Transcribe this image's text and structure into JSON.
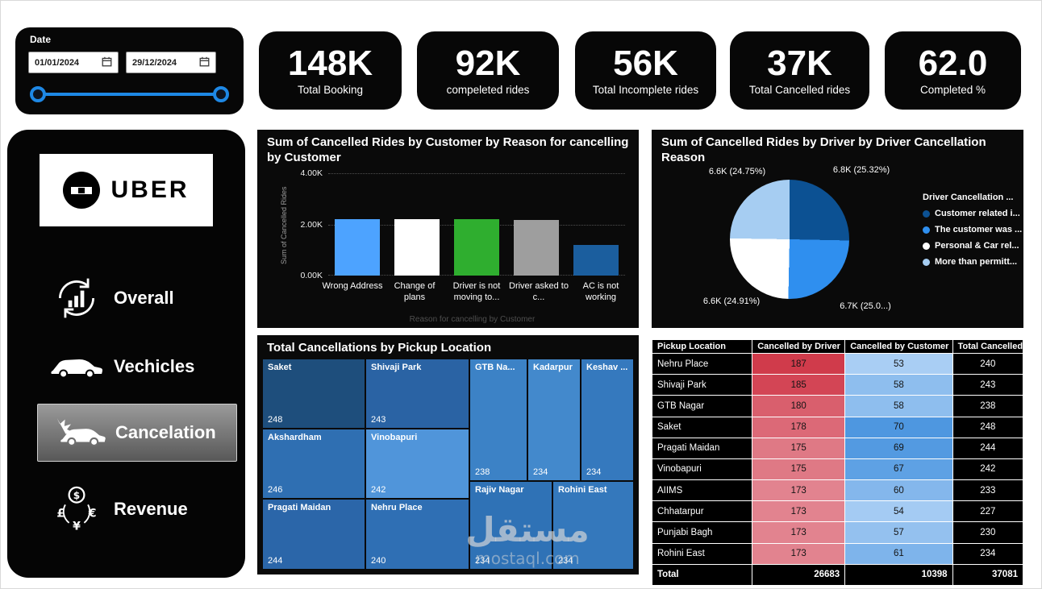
{
  "date_filter": {
    "label": "Date",
    "start_date": "01/01/2024",
    "end_date": "29/12/2024"
  },
  "kpis": [
    {
      "value": "148K",
      "label": "Total Booking"
    },
    {
      "value": "92K",
      "label": "compeleted rides"
    },
    {
      "value": "56K",
      "label": "Total Incomplete rides"
    },
    {
      "value": "37K",
      "label": "Total Cancelled rides"
    },
    {
      "value": "62.0",
      "label": "Completed %"
    }
  ],
  "sidebar": {
    "logo_text": "UBER",
    "items": [
      {
        "label": "Overall",
        "active": false
      },
      {
        "label": "Vechicles",
        "active": false
      },
      {
        "label": "Cancelation",
        "active": true
      },
      {
        "label": "Revenue",
        "active": false
      }
    ]
  },
  "watermark": {
    "arabic": "مستقل",
    "latin": "mostaql.com"
  },
  "chart_data": [
    {
      "type": "bar",
      "title": "Sum of Cancelled Rides by Customer by Reason for cancelling by Customer",
      "ylabel": "Sum of Cancelled Rides",
      "xlabel": "Reason for cancelling by Customer",
      "categories": [
        "Wrong Address",
        "Change of plans",
        "Driver is not moving to...",
        "Driver asked to c...",
        "AC is not working"
      ],
      "values": [
        2210,
        2205,
        2195,
        2185,
        1190
      ],
      "colors": [
        "#4DA3FF",
        "#FFFFFF",
        "#2FAE2F",
        "#9E9E9E",
        "#1B5E9E"
      ],
      "ylim": [
        0,
        4000
      ],
      "yticks": [
        "4.00K",
        "2.00K",
        "0.00K"
      ],
      "grid": "dotted horizontal"
    },
    {
      "type": "pie",
      "title": "Sum of Cancelled Rides by Driver by Driver Cancellation Reason",
      "legend_title": "Driver Cancellation ...",
      "legend_position": "right",
      "slices": [
        {
          "legend": "Customer related i...",
          "label": "6.8K (25.32%)",
          "value": 25.32,
          "color": "#0C5193"
        },
        {
          "legend": "The customer was ...",
          "label": "6.7K (25.0...)",
          "value": 25.02,
          "color": "#2F8FEF"
        },
        {
          "legend": "Personal & Car rel...",
          "label": "6.6K (24.91%)",
          "value": 24.91,
          "color": "#FFFFFF"
        },
        {
          "legend": "More than permitt...",
          "label": "6.6K (24.75%)",
          "value": 24.75,
          "color": "#A6CDF2"
        }
      ]
    },
    {
      "type": "treemap",
      "title": "Total Cancellations by Pickup Location",
      "tiles": [
        {
          "name": "Saket",
          "value": 248,
          "color": "#1E4E7C"
        },
        {
          "name": "Shivaji Park",
          "value": 243,
          "color": "#2A63A4"
        },
        {
          "name": "GTB Na...",
          "value": 238,
          "color": "#3C82C6"
        },
        {
          "name": "Kadarpur",
          "value": 234,
          "color": "#4389CC"
        },
        {
          "name": "Keshav ...",
          "value": 234,
          "color": "#3579BE"
        },
        {
          "name": "Akshardham",
          "value": 246,
          "color": "#2F6FB2"
        },
        {
          "name": "Vinobapuri",
          "value": 242,
          "color": "#5095DA"
        },
        {
          "name": "Rajiv Nagar",
          "value": 234,
          "color": "#2F72B6"
        },
        {
          "name": "Rohini East",
          "value": 234,
          "color": "#3478BC"
        },
        {
          "name": "Pragati Maidan",
          "value": 244,
          "color": "#2B66A9"
        },
        {
          "name": "Nehru Place",
          "value": 240,
          "color": "#2F6FB4"
        }
      ]
    },
    {
      "type": "table",
      "headers": [
        "Pickup Location",
        "Cancelled by Driver",
        "Cancelled by Customer",
        "Total Cancelled"
      ],
      "rows": [
        {
          "location": "Nehru Place",
          "driver": 187,
          "customer": 53,
          "total": 240
        },
        {
          "location": "Shivaji Park",
          "driver": 185,
          "customer": 58,
          "total": 243
        },
        {
          "location": "GTB Nagar",
          "driver": 180,
          "customer": 58,
          "total": 238
        },
        {
          "location": "Saket",
          "driver": 178,
          "customer": 70,
          "total": 248
        },
        {
          "location": "Pragati Maidan",
          "driver": 175,
          "customer": 69,
          "total": 244
        },
        {
          "location": "Vinobapuri",
          "driver": 175,
          "customer": 67,
          "total": 242
        },
        {
          "location": "AIIMS",
          "driver": 173,
          "customer": 60,
          "total": 233
        },
        {
          "location": "Chhatarpur",
          "driver": 173,
          "customer": 54,
          "total": 227
        },
        {
          "location": "Punjabi Bagh",
          "driver": 173,
          "customer": 57,
          "total": 230
        },
        {
          "location": "Rohini East",
          "driver": 173,
          "customer": 61,
          "total": 234
        }
      ],
      "total_row": {
        "location": "Total",
        "driver": 26683,
        "customer": 10398,
        "total": 37081
      },
      "driver_color_scale": [
        "#E2838F",
        "#D03B4B"
      ],
      "customer_color_scale": [
        "#A9CEF4",
        "#4E97E0"
      ]
    }
  ]
}
